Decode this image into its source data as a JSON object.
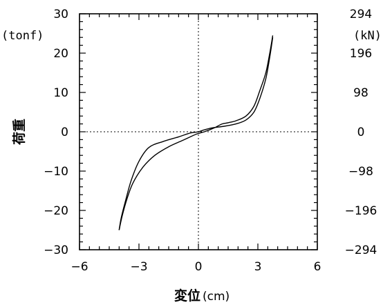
{
  "chart_data": {
    "type": "line",
    "xlabel": "変位",
    "xlabel_unit": "(cm)",
    "ylabel": "荷重",
    "ylabel_left_unit": "(tonf)",
    "ylabel_right_unit": "(kN)",
    "xlim": [
      -6,
      6
    ],
    "ylim": [
      -30,
      30
    ],
    "x_ticks": [
      -6,
      -3,
      0,
      3,
      6
    ],
    "x_tick_labels": [
      "−6",
      "−3",
      "0",
      "3",
      "6"
    ],
    "y_ticks": [
      -30,
      -20,
      -10,
      0,
      10,
      20,
      30
    ],
    "y_tick_labels": [
      "−30",
      "−20",
      "−10",
      "0",
      "10",
      "20",
      "30"
    ],
    "y_right_tick_labels": [
      "−294",
      "−196",
      "−98",
      "0",
      "98",
      "196",
      "294"
    ],
    "zero_lines": "dotted",
    "grid": false,
    "series": [
      {
        "points": [
          [
            -4.0,
            -25
          ],
          [
            -3.9,
            -22
          ],
          [
            -3.7,
            -18
          ],
          [
            -3.4,
            -12.5
          ],
          [
            -3.0,
            -7.5
          ],
          [
            -2.5,
            -4.0
          ],
          [
            -1.8,
            -2.5
          ],
          [
            -1.0,
            -1.3
          ],
          [
            -0.4,
            -0.3
          ],
          [
            0.0,
            0.0
          ],
          [
            0.3,
            0.5
          ],
          [
            0.7,
            1.0
          ],
          [
            1.3,
            1.4
          ],
          [
            1.9,
            2.0
          ],
          [
            2.4,
            3.0
          ],
          [
            2.8,
            5.0
          ],
          [
            3.1,
            8.5
          ],
          [
            3.4,
            13.5
          ],
          [
            3.6,
            19.0
          ],
          [
            3.75,
            24.0
          ]
        ]
      },
      {
        "points": [
          [
            3.75,
            24.5
          ],
          [
            3.6,
            20.0
          ],
          [
            3.4,
            15.0
          ],
          [
            3.1,
            10.5
          ],
          [
            2.8,
            6.5
          ],
          [
            2.4,
            4.0
          ],
          [
            1.9,
            2.8
          ],
          [
            1.5,
            2.3
          ],
          [
            1.2,
            2.0
          ],
          [
            0.8,
            1.0
          ],
          [
            0.3,
            0.0
          ],
          [
            -0.1,
            -0.6
          ],
          [
            -0.8,
            -2.2
          ],
          [
            -1.5,
            -3.8
          ],
          [
            -2.2,
            -6.0
          ],
          [
            -2.8,
            -9.0
          ],
          [
            -3.3,
            -13.0
          ],
          [
            -3.6,
            -17.0
          ],
          [
            -3.85,
            -21.5
          ],
          [
            -4.0,
            -25
          ]
        ]
      }
    ]
  }
}
